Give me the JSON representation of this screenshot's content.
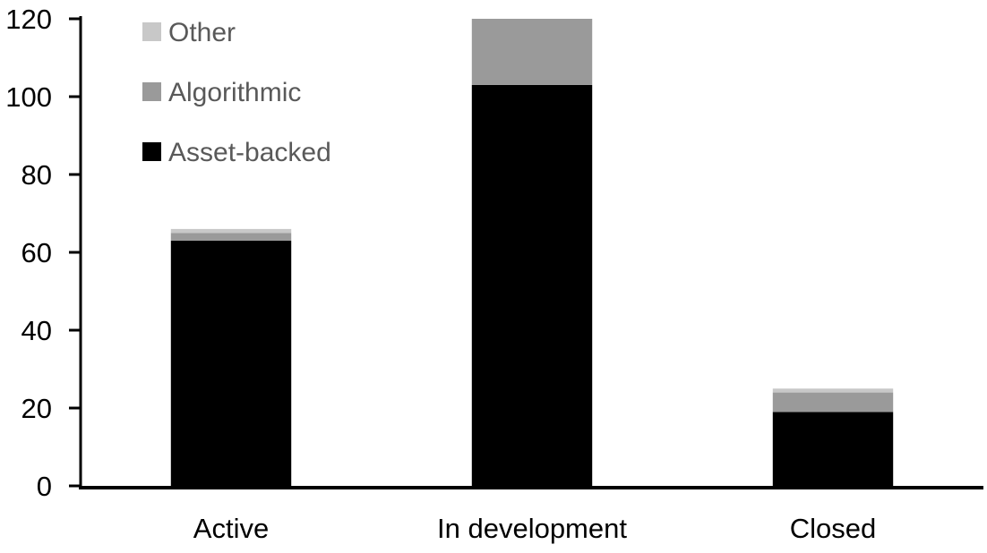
{
  "figure": {
    "background": "#ffffff"
  },
  "chart_data": {
    "type": "bar",
    "stacked": true,
    "orientation": "vertical",
    "title": "",
    "xlabel": "",
    "ylabel": "",
    "categories": [
      "Active",
      "In development",
      "Closed"
    ],
    "series": [
      {
        "name": "Asset-backed",
        "color": "#000000",
        "values": [
          63,
          103,
          19
        ]
      },
      {
        "name": "Algorithmic",
        "color": "#9a9a9a",
        "values": [
          2,
          17,
          5
        ]
      },
      {
        "name": "Other",
        "color": "#c8c8c8",
        "values": [
          1,
          0,
          1
        ]
      }
    ],
    "ylim": [
      0,
      120
    ],
    "yticks": [
      0,
      20,
      40,
      60,
      80,
      100,
      120
    ],
    "grid": false,
    "legend_position": "top-left",
    "legend_order": [
      "Other",
      "Algorithmic",
      "Asset-backed"
    ],
    "axis_color": "#000000",
    "tick_label_color": "#000000",
    "legend_text_color": "#595959"
  }
}
